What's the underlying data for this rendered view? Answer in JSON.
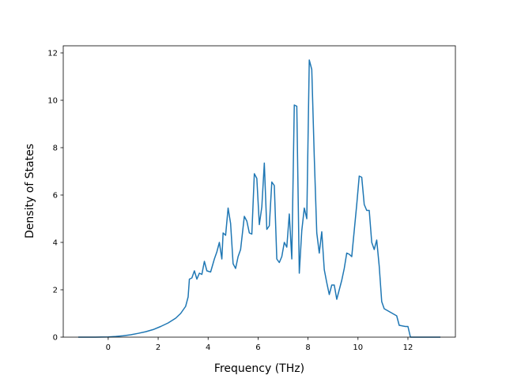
{
  "chart_data": {
    "type": "line",
    "xlabel": "Frequency (THz)",
    "ylabel": "Density of States",
    "xlim": [
      -1.8,
      13.9
    ],
    "ylim": [
      0,
      12.3
    ],
    "grid": false,
    "x_ticks": [
      0,
      2,
      4,
      6,
      8,
      10,
      12
    ],
    "y_ticks": [
      0,
      2,
      4,
      6,
      8,
      10,
      12
    ],
    "x_tick_labels": [
      "0",
      "2",
      "4",
      "6",
      "8",
      "10",
      "12"
    ],
    "y_tick_labels": [
      "0",
      "2",
      "4",
      "6",
      "8",
      "10",
      "12"
    ],
    "series": [
      {
        "color": "#1f77b4",
        "x": [
          -1.2,
          -0.5,
          0.0,
          0.3,
          0.6,
          0.9,
          1.2,
          1.5,
          1.8,
          2.1,
          2.4,
          2.7,
          2.9,
          3.1,
          3.2,
          3.25,
          3.35,
          3.45,
          3.55,
          3.65,
          3.75,
          3.85,
          3.95,
          4.1,
          4.25,
          4.35,
          4.45,
          4.55,
          4.6,
          4.7,
          4.8,
          4.9,
          5.0,
          5.1,
          5.2,
          5.3,
          5.45,
          5.55,
          5.65,
          5.75,
          5.85,
          5.95,
          6.05,
          6.15,
          6.25,
          6.35,
          6.45,
          6.55,
          6.65,
          6.75,
          6.85,
          6.95,
          7.05,
          7.15,
          7.25,
          7.35,
          7.45,
          7.55,
          7.65,
          7.75,
          7.85,
          7.95,
          8.05,
          8.15,
          8.25,
          8.35,
          8.45,
          8.55,
          8.65,
          8.75,
          8.85,
          8.95,
          9.05,
          9.15,
          9.25,
          9.35,
          9.45,
          9.55,
          9.65,
          9.75,
          9.85,
          9.95,
          10.05,
          10.15,
          10.25,
          10.35,
          10.45,
          10.55,
          10.65,
          10.75,
          10.85,
          10.95,
          11.05,
          11.3,
          11.55,
          11.65,
          11.9,
          12.0,
          12.1,
          12.5,
          13.0,
          13.3
        ],
        "y": [
          0.0,
          0.0,
          0.01,
          0.03,
          0.06,
          0.1,
          0.16,
          0.23,
          0.32,
          0.45,
          0.6,
          0.8,
          1.0,
          1.3,
          1.7,
          2.45,
          2.5,
          2.8,
          2.45,
          2.7,
          2.65,
          3.2,
          2.8,
          2.75,
          3.3,
          3.6,
          4.0,
          3.3,
          4.4,
          4.3,
          5.45,
          4.8,
          3.1,
          2.9,
          3.4,
          3.7,
          5.1,
          4.9,
          4.4,
          4.35,
          6.9,
          6.7,
          4.75,
          5.5,
          7.35,
          4.55,
          4.7,
          6.55,
          6.4,
          3.3,
          3.15,
          3.4,
          4.0,
          3.8,
          5.2,
          3.3,
          9.8,
          9.75,
          2.7,
          4.5,
          5.45,
          5.0,
          11.7,
          11.3,
          7.6,
          4.4,
          3.55,
          4.45,
          2.85,
          2.3,
          1.8,
          2.2,
          2.2,
          1.6,
          2.0,
          2.4,
          2.9,
          3.55,
          3.5,
          3.4,
          4.5,
          5.6,
          6.8,
          6.75,
          5.6,
          5.35,
          5.35,
          4.0,
          3.7,
          4.1,
          3.0,
          1.5,
          1.2,
          1.05,
          0.9,
          0.5,
          0.45,
          0.45,
          0.0,
          0.0,
          0.0,
          0.0
        ]
      }
    ]
  }
}
